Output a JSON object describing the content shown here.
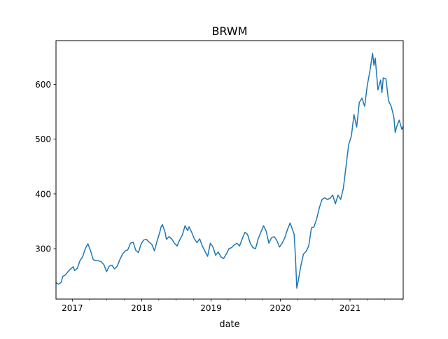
{
  "chart_data": {
    "type": "line",
    "title": "BRWM",
    "xlabel": "date",
    "ylabel": "",
    "xlim": [
      "2016-10-07",
      "2021-10-08"
    ],
    "ylim": [
      208,
      680
    ],
    "x_ticks": [
      {
        "date": "2017-01-01",
        "label": "2017"
      },
      {
        "date": "2018-01-01",
        "label": "2018"
      },
      {
        "date": "2019-01-01",
        "label": "2019"
      },
      {
        "date": "2020-01-01",
        "label": "2020"
      },
      {
        "date": "2021-01-01",
        "label": "2021"
      }
    ],
    "y_ticks": [
      300,
      400,
      500,
      600
    ],
    "grid": false,
    "series": [
      {
        "color": "#1f77b4",
        "points": [
          [
            "2016-10-07",
            238
          ],
          [
            "2016-10-21",
            235
          ],
          [
            "2016-11-04",
            239
          ],
          [
            "2016-11-11",
            249
          ],
          [
            "2016-11-25",
            252
          ],
          [
            "2016-12-09",
            258
          ],
          [
            "2016-12-23",
            263
          ],
          [
            "2017-01-06",
            267
          ],
          [
            "2017-01-13",
            260
          ],
          [
            "2017-01-27",
            264
          ],
          [
            "2017-02-10",
            278
          ],
          [
            "2017-02-24",
            285
          ],
          [
            "2017-03-10",
            300
          ],
          [
            "2017-03-24",
            309
          ],
          [
            "2017-04-07",
            296
          ],
          [
            "2017-04-21",
            280
          ],
          [
            "2017-05-05",
            278
          ],
          [
            "2017-05-19",
            278
          ],
          [
            "2017-06-02",
            276
          ],
          [
            "2017-06-16",
            271
          ],
          [
            "2017-06-30",
            258
          ],
          [
            "2017-07-14",
            268
          ],
          [
            "2017-07-28",
            270
          ],
          [
            "2017-08-11",
            263
          ],
          [
            "2017-08-25",
            268
          ],
          [
            "2017-09-08",
            280
          ],
          [
            "2017-09-22",
            290
          ],
          [
            "2017-10-06",
            296
          ],
          [
            "2017-10-20",
            298
          ],
          [
            "2017-11-03",
            310
          ],
          [
            "2017-11-17",
            312
          ],
          [
            "2017-12-01",
            297
          ],
          [
            "2017-12-15",
            293
          ],
          [
            "2017-12-29",
            309
          ],
          [
            "2018-01-12",
            316
          ],
          [
            "2018-01-26",
            317
          ],
          [
            "2018-02-09",
            312
          ],
          [
            "2018-02-23",
            308
          ],
          [
            "2018-03-09",
            296
          ],
          [
            "2018-03-23",
            314
          ],
          [
            "2018-04-06",
            330
          ],
          [
            "2018-04-13",
            340
          ],
          [
            "2018-04-20",
            344
          ],
          [
            "2018-05-04",
            330
          ],
          [
            "2018-05-11",
            317
          ],
          [
            "2018-05-25",
            322
          ],
          [
            "2018-06-08",
            318
          ],
          [
            "2018-06-22",
            310
          ],
          [
            "2018-07-06",
            305
          ],
          [
            "2018-07-20",
            316
          ],
          [
            "2018-08-03",
            325
          ],
          [
            "2018-08-17",
            342
          ],
          [
            "2018-08-31",
            333
          ],
          [
            "2018-09-07",
            340
          ],
          [
            "2018-09-21",
            330
          ],
          [
            "2018-10-05",
            318
          ],
          [
            "2018-10-19",
            311
          ],
          [
            "2018-11-02",
            318
          ],
          [
            "2018-11-16",
            305
          ],
          [
            "2018-11-30",
            295
          ],
          [
            "2018-12-14",
            286
          ],
          [
            "2018-12-28",
            310
          ],
          [
            "2019-01-11",
            303
          ],
          [
            "2019-01-25",
            288
          ],
          [
            "2019-02-08",
            294
          ],
          [
            "2019-02-22",
            285
          ],
          [
            "2019-03-08",
            282
          ],
          [
            "2019-03-22",
            290
          ],
          [
            "2019-04-05",
            300
          ],
          [
            "2019-04-19",
            302
          ],
          [
            "2019-05-03",
            307
          ],
          [
            "2019-05-17",
            310
          ],
          [
            "2019-05-31",
            305
          ],
          [
            "2019-06-14",
            318
          ],
          [
            "2019-06-28",
            330
          ],
          [
            "2019-07-12",
            326
          ],
          [
            "2019-07-26",
            310
          ],
          [
            "2019-08-09",
            302
          ],
          [
            "2019-08-23",
            300
          ],
          [
            "2019-09-06",
            318
          ],
          [
            "2019-09-20",
            330
          ],
          [
            "2019-10-04",
            342
          ],
          [
            "2019-10-18",
            332
          ],
          [
            "2019-11-01",
            310
          ],
          [
            "2019-11-15",
            320
          ],
          [
            "2019-11-29",
            322
          ],
          [
            "2019-12-13",
            315
          ],
          [
            "2019-12-27",
            303
          ],
          [
            "2020-01-10",
            310
          ],
          [
            "2020-01-24",
            320
          ],
          [
            "2020-02-07",
            335
          ],
          [
            "2020-02-21",
            347
          ],
          [
            "2020-03-06",
            333
          ],
          [
            "2020-03-13",
            327
          ],
          [
            "2020-03-20",
            285
          ],
          [
            "2020-03-27",
            228
          ],
          [
            "2020-04-03",
            240
          ],
          [
            "2020-04-17",
            268
          ],
          [
            "2020-05-01",
            290
          ],
          [
            "2020-05-15",
            295
          ],
          [
            "2020-05-29",
            305
          ],
          [
            "2020-06-12",
            338
          ],
          [
            "2020-06-26",
            340
          ],
          [
            "2020-07-10",
            355
          ],
          [
            "2020-07-24",
            375
          ],
          [
            "2020-08-07",
            390
          ],
          [
            "2020-08-21",
            393
          ],
          [
            "2020-09-04",
            390
          ],
          [
            "2020-09-18",
            392
          ],
          [
            "2020-10-02",
            398
          ],
          [
            "2020-10-16",
            382
          ],
          [
            "2020-10-30",
            398
          ],
          [
            "2020-11-13",
            390
          ],
          [
            "2020-11-27",
            410
          ],
          [
            "2020-12-11",
            450
          ],
          [
            "2020-12-25",
            490
          ],
          [
            "2021-01-08",
            505
          ],
          [
            "2021-01-22",
            545
          ],
          [
            "2021-02-05",
            522
          ],
          [
            "2021-02-19",
            567
          ],
          [
            "2021-03-05",
            575
          ],
          [
            "2021-03-19",
            560
          ],
          [
            "2021-04-02",
            598
          ],
          [
            "2021-04-16",
            625
          ],
          [
            "2021-04-30",
            657
          ],
          [
            "2021-05-07",
            635
          ],
          [
            "2021-05-14",
            648
          ],
          [
            "2021-05-28",
            590
          ],
          [
            "2021-06-11",
            608
          ],
          [
            "2021-06-18",
            585
          ],
          [
            "2021-06-25",
            612
          ],
          [
            "2021-07-09",
            610
          ],
          [
            "2021-07-23",
            570
          ],
          [
            "2021-08-06",
            560
          ],
          [
            "2021-08-20",
            540
          ],
          [
            "2021-08-27",
            512
          ],
          [
            "2021-09-03",
            522
          ],
          [
            "2021-09-17",
            535
          ],
          [
            "2021-10-01",
            518
          ],
          [
            "2021-10-08",
            523
          ]
        ]
      }
    ]
  }
}
